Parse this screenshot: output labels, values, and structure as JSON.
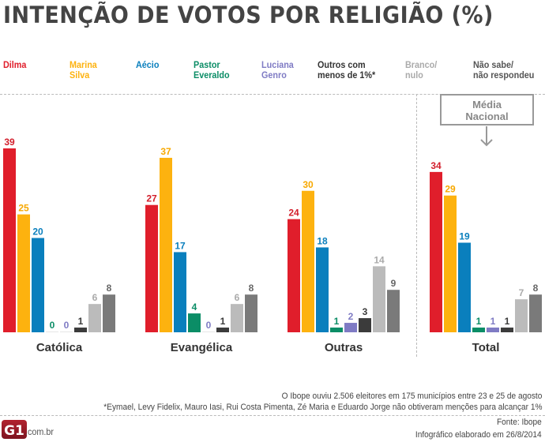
{
  "title": "INTENÇÃO DE VOTOS POR RELIGIÃO (%)",
  "legend": [
    {
      "label": "Dilma",
      "color": "#e01e2b"
    },
    {
      "label": "Marina\nSilva",
      "color": "#fdb20f"
    },
    {
      "label": "Aécio",
      "color": "#0a7fbd"
    },
    {
      "label": "Pastor\nEveraldo",
      "color": "#0b8d66"
    },
    {
      "label": "Luciana\nGenro",
      "color": "#7f7bc4"
    },
    {
      "label": "Outros com\nmenos de 1%*",
      "color": "#3b3b3b"
    },
    {
      "label": "Branco/\nnulo",
      "color": "#bbbbbb"
    },
    {
      "label": "Não sabe/\nnão respondeu",
      "color": "#7a7a7a"
    }
  ],
  "media_nacional_label": "Média\nNacional",
  "chart_data": {
    "type": "bar",
    "title": "INTENÇÃO DE VOTOS POR RELIGIÃO (%)",
    "xlabel": "",
    "ylabel": "",
    "ylim": [
      0,
      40
    ],
    "grid": false,
    "legend_position": "top",
    "categories": [
      "Católica",
      "Evangélica",
      "Outras",
      "Total"
    ],
    "series": [
      {
        "name": "Dilma",
        "color": "#e01e2b",
        "label_color": "#d21e2b",
        "values": [
          39,
          27,
          24,
          34
        ]
      },
      {
        "name": "Marina Silva",
        "color": "#fdb20f",
        "label_color": "#f7a800",
        "values": [
          25,
          37,
          30,
          29
        ]
      },
      {
        "name": "Aécio",
        "color": "#0a7fbd",
        "label_color": "#0a7fbd",
        "values": [
          20,
          17,
          18,
          19
        ]
      },
      {
        "name": "Pastor Everaldo",
        "color": "#0b8d66",
        "label_color": "#0b8d66",
        "values": [
          0,
          4,
          1,
          1
        ]
      },
      {
        "name": "Luciana Genro",
        "color": "#7f7bc4",
        "label_color": "#7f7bc4",
        "values": [
          0,
          0,
          2,
          1
        ]
      },
      {
        "name": "Outros com menos de 1%*",
        "color": "#3b3b3b",
        "label_color": "#3b3b3b",
        "values": [
          1,
          1,
          3,
          1
        ]
      },
      {
        "name": "Branco/nulo",
        "color": "#bbbbbb",
        "label_color": "#aaaaaa",
        "values": [
          6,
          6,
          14,
          7
        ]
      },
      {
        "name": "Não sabe/não respondeu",
        "color": "#7a7a7a",
        "label_color": "#666666",
        "values": [
          8,
          8,
          9,
          8
        ]
      }
    ],
    "annotations": [
      "Média Nacional → Total"
    ]
  },
  "footer": {
    "note1": "O Ibope ouviu 2.506 eleitores em 175 municípios entre 23 e 25 de agosto",
    "note2": "*Eymael, Levy Fidelix, Mauro Iasi, Rui Costa Pimenta, Zé Maria e Eduardo Jorge não obtiveram menções para alcançar 1%",
    "source": "Fonte: Ibope",
    "credit": "Infográfico elaborado em 26/8/2014",
    "logo_text": "G1",
    "logo_domain": ".com.br"
  }
}
